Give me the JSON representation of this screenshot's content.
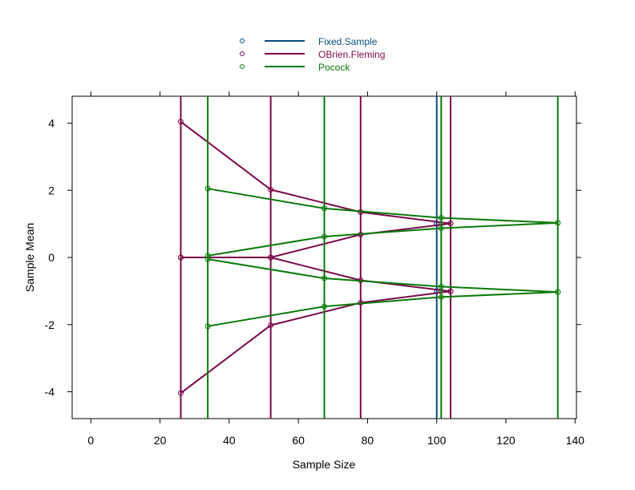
{
  "chart_data": {
    "type": "line",
    "title": "",
    "xlabel": "Sample Size",
    "ylabel": "Sample Mean",
    "xlim": [
      -5.4,
      140.4
    ],
    "ylim": [
      -4.8,
      4.8
    ],
    "xticks": [
      0,
      20,
      40,
      60,
      80,
      100,
      120,
      140
    ],
    "yticks": [
      -4,
      -2,
      0,
      2,
      4
    ],
    "grid": false,
    "legend_position": "top-center",
    "series": [
      {
        "name": "Fixed.Sample",
        "color": "#0a4f7e",
        "analysis_times": [
          100
        ],
        "upper": [
          1.0
        ],
        "upper_inner": [
          1.0
        ],
        "lower_inner": [
          -1.0
        ],
        "lower": [
          -1.0
        ]
      },
      {
        "name": "OBrien.Fleming",
        "color": "#7a0a4a",
        "analysis_times": [
          26,
          52,
          78,
          104
        ],
        "upper": [
          4.04,
          2.02,
          1.35,
          1.01
        ],
        "upper_inner": [
          0.0,
          0.0,
          0.68,
          1.01
        ],
        "lower_inner": [
          0.0,
          0.0,
          -0.68,
          -1.01
        ],
        "lower": [
          -4.04,
          -2.02,
          -1.35,
          -1.01
        ]
      },
      {
        "name": "Pocock",
        "color": "#0a7a0a",
        "analysis_times": [
          33.8,
          67.5,
          101.3,
          135
        ],
        "upper": [
          2.05,
          1.46,
          1.18,
          1.03
        ],
        "upper_inner": [
          0.05,
          0.62,
          0.87,
          1.03
        ],
        "lower_inner": [
          -0.05,
          -0.62,
          -0.87,
          -1.03
        ],
        "lower": [
          -2.05,
          -1.46,
          -1.18,
          -1.03
        ]
      }
    ]
  }
}
